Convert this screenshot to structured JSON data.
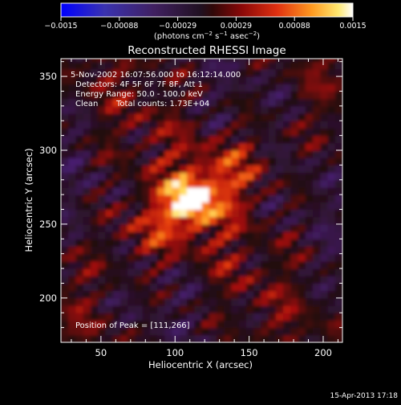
{
  "colors": {
    "background": "#000000",
    "foreground": "#ffffff",
    "colormap": [
      "#0000ff",
      "#3f2a8a",
      "#3a1a3a",
      "#5a1010",
      "#a01010",
      "#e23010",
      "#ff8a10",
      "#ffe060",
      "#ffffff"
    ]
  },
  "colorbar": {
    "tick_labels": [
      "−0.0015",
      "−0.00088",
      "−0.00029",
      "0.00029",
      "0.00088",
      "0.0015"
    ],
    "unit_main": "(photons cm",
    "unit_sup1": "−2",
    "unit_mid": " s",
    "unit_sup2": "−1",
    "unit_mid2": " asec",
    "unit_sup3": "−2",
    "unit_end": ")"
  },
  "chart_data": {
    "type": "heatmap",
    "title": "Reconstructed RHESSI Image",
    "xlabel": "Heliocentric X (arcsec)",
    "ylabel": "Heliocentric Y (arcsec)",
    "xlim": [
      23,
      213
    ],
    "ylim": [
      170,
      362
    ],
    "x_ticks": [
      50,
      100,
      150,
      200
    ],
    "y_ticks": [
      200,
      250,
      300,
      350
    ],
    "x_tick_labels": [
      "50",
      "100",
      "150",
      "200"
    ],
    "y_tick_labels": [
      "200",
      "250",
      "300",
      "350"
    ],
    "color_range": [
      -0.0015,
      0.0015
    ],
    "peak": [
      111,
      266
    ],
    "annotations": [
      "5-Nov-2002 16:07:56.000 to 16:12:14.000",
      "Detectors: 4F 5F 6F 7F 8F, Att 1",
      "Energy Range: 50.0 - 100.0 keV",
      "Clean",
      "Total counts: 1.73E+04",
      "Position of Peak = [111,266]"
    ]
  },
  "footer": {
    "timestamp": "15-Apr-2013 17:18"
  }
}
